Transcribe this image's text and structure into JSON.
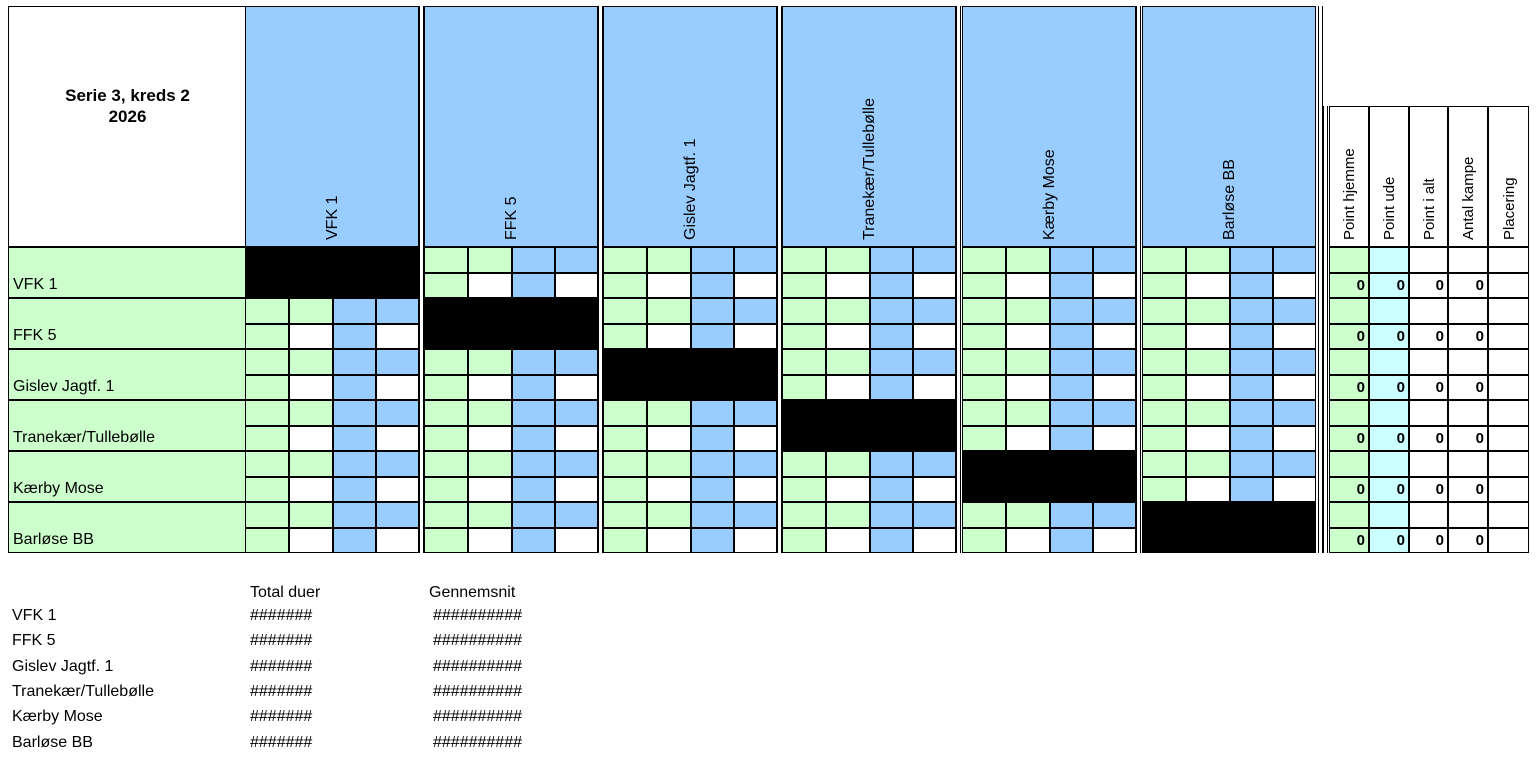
{
  "title": {
    "line1": "Serie 3, kreds 2",
    "line2": "2026"
  },
  "teams": [
    "VFK 1",
    "FFK 5",
    "Gislev Jagtf. 1",
    "Tranekær/Tullebølle",
    "Kærby Mose",
    "Barløse BB"
  ],
  "stat_headers": [
    "Point hjemme",
    "Point ude",
    "Point i alt",
    "Antal kampe",
    "Placering"
  ],
  "stats": [
    [
      "0",
      "0",
      "0",
      "0",
      ""
    ],
    [
      "0",
      "0",
      "0",
      "0",
      ""
    ],
    [
      "0",
      "0",
      "0",
      "0",
      ""
    ],
    [
      "0",
      "0",
      "0",
      "0",
      ""
    ],
    [
      "0",
      "0",
      "0",
      "0",
      ""
    ],
    [
      "0",
      "0",
      "0",
      "0",
      ""
    ]
  ],
  "summary": {
    "headers": [
      "Total duer",
      "Gennemsnit"
    ],
    "rows": [
      {
        "team": "VFK 1",
        "total": "#######",
        "avg": "##########"
      },
      {
        "team": "FFK 5",
        "total": "#######",
        "avg": "##########"
      },
      {
        "team": "Gislev Jagtf. 1",
        "total": "#######",
        "avg": "##########"
      },
      {
        "team": "Tranekær/Tullebølle",
        "total": "#######",
        "avg": "##########"
      },
      {
        "team": "Kærby Mose",
        "total": "#######",
        "avg": "##########"
      },
      {
        "team": "Barløse BB",
        "total": "#######",
        "avg": "##########"
      }
    ]
  },
  "colors": {
    "green": "#ccffcc",
    "blue": "#99ccff",
    "cyan": "#ccffff",
    "self": "#000000"
  }
}
